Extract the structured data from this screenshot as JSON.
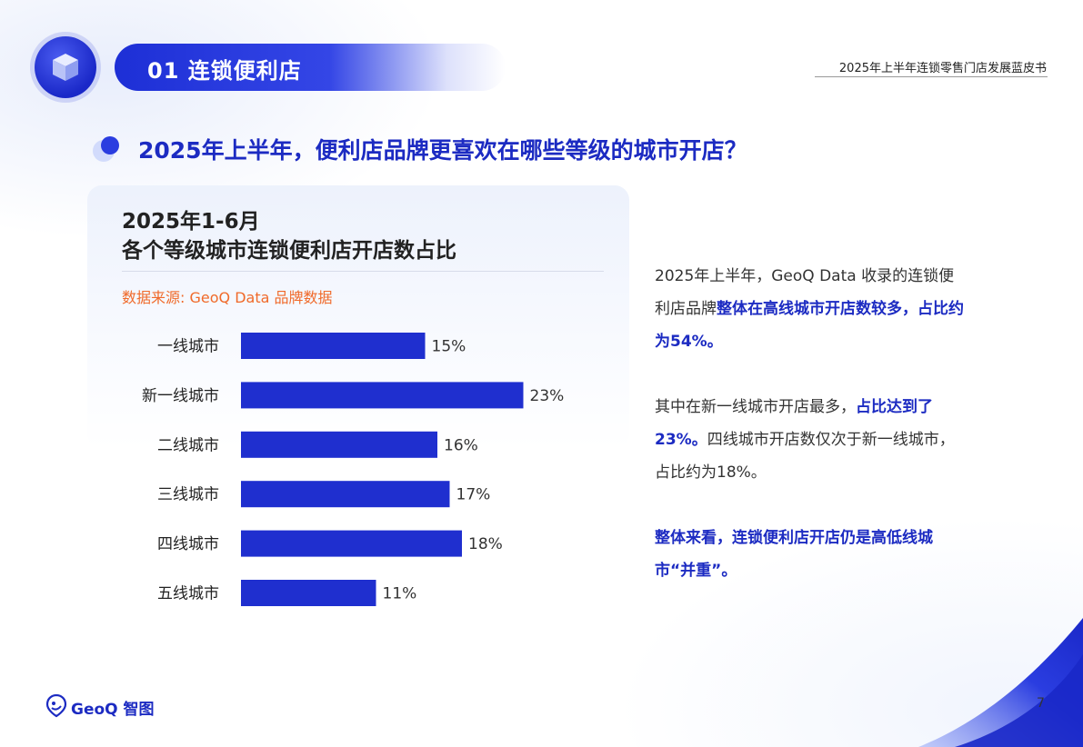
{
  "header": {
    "section_title": "01 连锁便利店",
    "report_title": "2025年上半年连锁零售门店发展蓝皮书"
  },
  "question": "2025年上半年，便利店品牌更喜欢在哪些等级的城市开店？",
  "chart_card": {
    "title_line1": "2025年1-6月",
    "title_line2": "各个等级城市连锁便利店开店数占比",
    "source": "数据来源: GeoQ Data 品牌数据"
  },
  "chart_data": {
    "type": "bar",
    "orientation": "horizontal",
    "title": "2025年1-6月 各个等级城市连锁便利店开店数占比",
    "categories": [
      "一线城市",
      "新一线城市",
      "二线城市",
      "三线城市",
      "四线城市",
      "五线城市"
    ],
    "values": [
      15,
      23,
      16,
      17,
      18,
      11
    ],
    "value_labels": [
      "15%",
      "23%",
      "16%",
      "17%",
      "18%",
      "11%"
    ],
    "unit": "%",
    "bar_color": "#1f2fcf",
    "grid": false,
    "legend": "none"
  },
  "commentary": {
    "p1_plain": "2025年上半年，GeoQ Data 收录的连锁便利店品牌",
    "p1_bold": "整体在高线城市开店数较多，占比约为54%。",
    "p2_plain_a": "其中在新一线城市开店最多，",
    "p2_bold": "占比达到了23%。",
    "p2_plain_b": "四线城市开店数仅次于新一线城市，占比约为18%。",
    "p3_bold": "整体来看，连锁便利店开店仍是高低线城市“并重”。"
  },
  "footer": {
    "brand": "GeoQ 智图",
    "page_number": "7"
  },
  "colors": {
    "accent_blue": "#1c2bc2",
    "source_orange": "#f06a2a"
  }
}
